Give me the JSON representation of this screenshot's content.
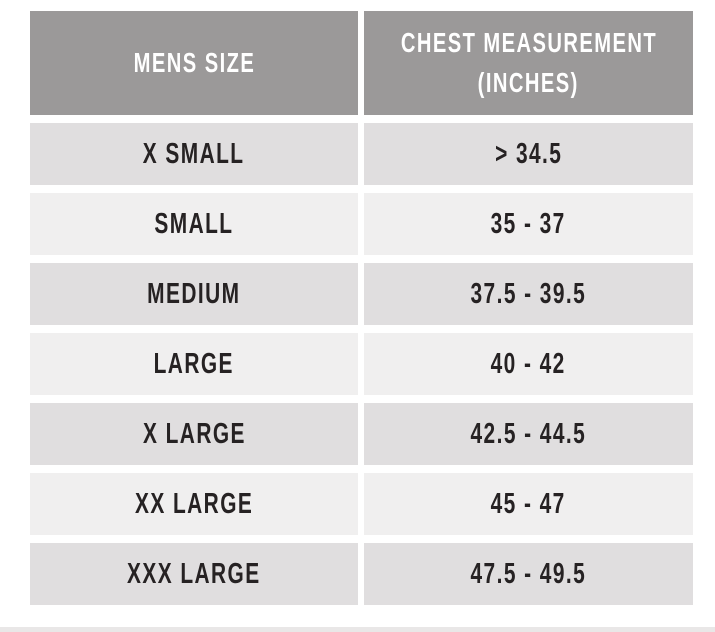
{
  "table": {
    "title": "mens-size-chart",
    "columns": [
      {
        "lines": [
          "MENS SIZE"
        ]
      },
      {
        "lines": [
          "CHEST MEASUREMENT",
          "(INCHES)"
        ]
      }
    ],
    "rows": [
      {
        "size": "X SMALL",
        "chest": "> 34.5"
      },
      {
        "size": "SMALL",
        "chest": "35 - 37"
      },
      {
        "size": "MEDIUM",
        "chest": "37.5 - 39.5"
      },
      {
        "size": "LARGE",
        "chest": "40 - 42"
      },
      {
        "size": "X LARGE",
        "chest": "42.5 - 44.5"
      },
      {
        "size": "XX LARGE",
        "chest": "45 - 47"
      },
      {
        "size": "XXX LARGE",
        "chest": "47.5 - 49.5"
      }
    ]
  },
  "colors": {
    "header_bg": "#9b9999",
    "row_dark_bg": "#e0dedf",
    "row_light_bg": "#f0efef",
    "header_text": "#ffffff",
    "body_text": "#262223",
    "divider_strip": "#e9e7e7",
    "page_bg": "#ffffff"
  }
}
